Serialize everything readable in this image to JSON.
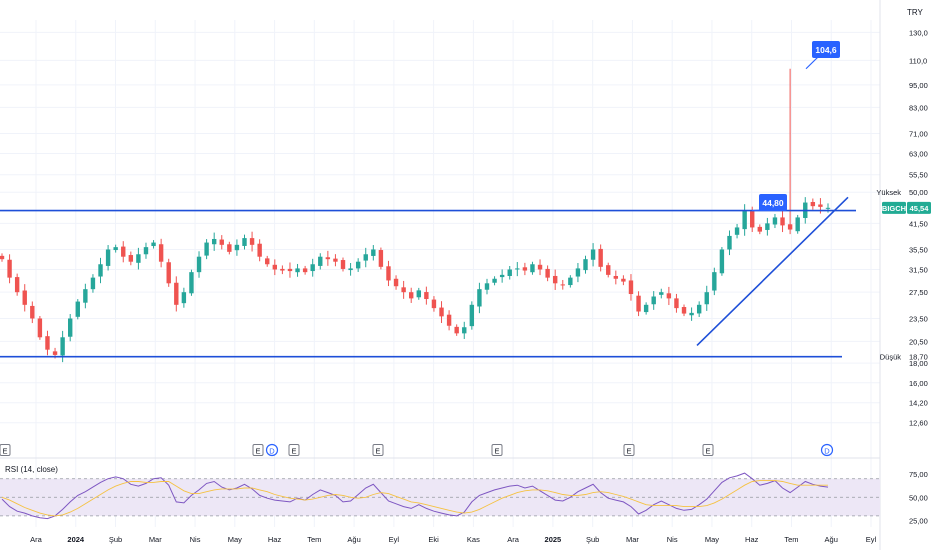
{
  "currency": "TRY",
  "colors": {
    "up": "#26a69a",
    "down": "#ef5350",
    "line": "#1e4fd8",
    "callout": "#2962ff",
    "ticker_bg": "#22ab94",
    "rsi": "#7e57c2",
    "rsi_ma": "#f5c242",
    "rsi_band": "#ede7f6"
  },
  "chart_data": [
    {
      "type": "candlestick",
      "scale": "log",
      "y_ticks": [
        "130,0",
        "110,0",
        "95,00",
        "83,00",
        "71,00",
        "63,00",
        "55,50",
        "50,00",
        "41,50",
        "35,50",
        "31,50",
        "27,50",
        "23,50",
        "20,50",
        "18,00",
        "16,00",
        "14,20",
        "12,60"
      ],
      "x_ticks": [
        "Ara",
        "2024",
        "Şub",
        "Mar",
        "Nis",
        "May",
        "Haz",
        "Tem",
        "Ağu",
        "Eyl",
        "Eki",
        "Kas",
        "Ara",
        "2025",
        "Şub",
        "Mar",
        "Nis",
        "May",
        "Haz",
        "Tem",
        "Ağu",
        "Eyl"
      ],
      "ticker": "BIGCH",
      "last_price": "45,54",
      "high_label": "Yüksek",
      "high_value": "50,00",
      "low_label": "Düşük",
      "low_value": "18,70",
      "resistance": 44.8,
      "support": 18.7,
      "callouts": [
        "44,80",
        "104,6"
      ],
      "spike_high": 104.6,
      "trendline": {
        "from": {
          "date": "2025-04",
          "value": 20.0
        },
        "to": {
          "date": "2025-08",
          "value": 48.5
        }
      },
      "markers": [
        "E",
        "E",
        "D",
        "E",
        "E",
        "E",
        "E",
        "E",
        "D"
      ],
      "closes": [
        33.5,
        30,
        27.5,
        25.5,
        23.5,
        21,
        19.5,
        18.9,
        21,
        23.5,
        26,
        28,
        30,
        32.5,
        35.5,
        36,
        34,
        33,
        34.5,
        36,
        37,
        33,
        29,
        25.5,
        27.5,
        31,
        34,
        37,
        37.8,
        36.5,
        35,
        36.5,
        38,
        36.5,
        34,
        32.5,
        31.5,
        31.3,
        31.2,
        31.7,
        31,
        32.5,
        34,
        33.5,
        33,
        31.6,
        31.7,
        33,
        34.5,
        35.5,
        32,
        29.5,
        28.5,
        27.5,
        26.5,
        27.8,
        26.4,
        25,
        23.8,
        22.5,
        21.5,
        22.3,
        25.5,
        28,
        29,
        29.8,
        30.5,
        31.5,
        31.7,
        31.3,
        32.5,
        31.5,
        30,
        29,
        28.7,
        30,
        31.7,
        33.5,
        35.5,
        32,
        30.5,
        29.8,
        29.3,
        27.2,
        24.5,
        25.5,
        26.8,
        27.5,
        26.5,
        25,
        24.2,
        24.3,
        25.5,
        27.5,
        31,
        35.5,
        38.5,
        40.5,
        44.8,
        40.5,
        39.5,
        41.5,
        43,
        41,
        40,
        43,
        47,
        46,
        45.8,
        45.54
      ]
    },
    {
      "type": "line",
      "title": "RSI (14, close)",
      "y_ticks": [
        "75,00",
        "50,00",
        "25,00"
      ],
      "band": [
        30,
        70
      ],
      "series": [
        {
          "values": [
            48,
            40,
            35,
            33,
            30,
            28,
            27,
            30,
            37,
            45,
            52,
            56,
            61,
            66,
            70,
            72,
            70,
            64,
            62,
            65,
            70,
            71,
            63,
            45,
            44,
            52,
            58,
            65,
            67,
            61,
            58,
            60,
            64,
            59,
            52,
            49,
            47,
            46,
            45,
            49,
            47,
            53,
            58,
            55,
            52,
            45,
            46,
            53,
            60,
            64,
            55,
            46,
            43,
            40,
            38,
            42,
            38,
            35,
            33,
            31,
            30,
            34,
            45,
            52,
            55,
            58,
            60,
            62,
            63,
            60,
            62,
            57,
            52,
            47,
            46,
            50,
            56,
            60,
            64,
            55,
            49,
            47,
            45,
            40,
            32,
            36,
            42,
            46,
            42,
            38,
            36,
            37,
            42,
            48,
            57,
            66,
            71,
            73,
            76,
            70,
            63,
            65,
            68,
            60,
            55,
            61,
            67,
            64,
            62,
            61
          ]
        },
        {
          "values": [
            50,
            47,
            43,
            39,
            36,
            33,
            31,
            30,
            31,
            34,
            38,
            43,
            48,
            53,
            58,
            62,
            65,
            67,
            67,
            66,
            66,
            67,
            67,
            62,
            57,
            54,
            54,
            56,
            58,
            59,
            59,
            59,
            60,
            60,
            58,
            56,
            53,
            51,
            49,
            48,
            47,
            48,
            50,
            52,
            53,
            52,
            50,
            49,
            50,
            53,
            55,
            54,
            51,
            48,
            45,
            44,
            42,
            40,
            38,
            36,
            34,
            33,
            34,
            37,
            41,
            45,
            49,
            52,
            55,
            57,
            58,
            58,
            57,
            55,
            53,
            52,
            52,
            53,
            55,
            56,
            55,
            53,
            51,
            48,
            45,
            42,
            41,
            41,
            41,
            41,
            40,
            40,
            40,
            41,
            44,
            48,
            53,
            58,
            63,
            67,
            68,
            68,
            68,
            67,
            65,
            63,
            63,
            63,
            63,
            63
          ]
        }
      ]
    }
  ]
}
